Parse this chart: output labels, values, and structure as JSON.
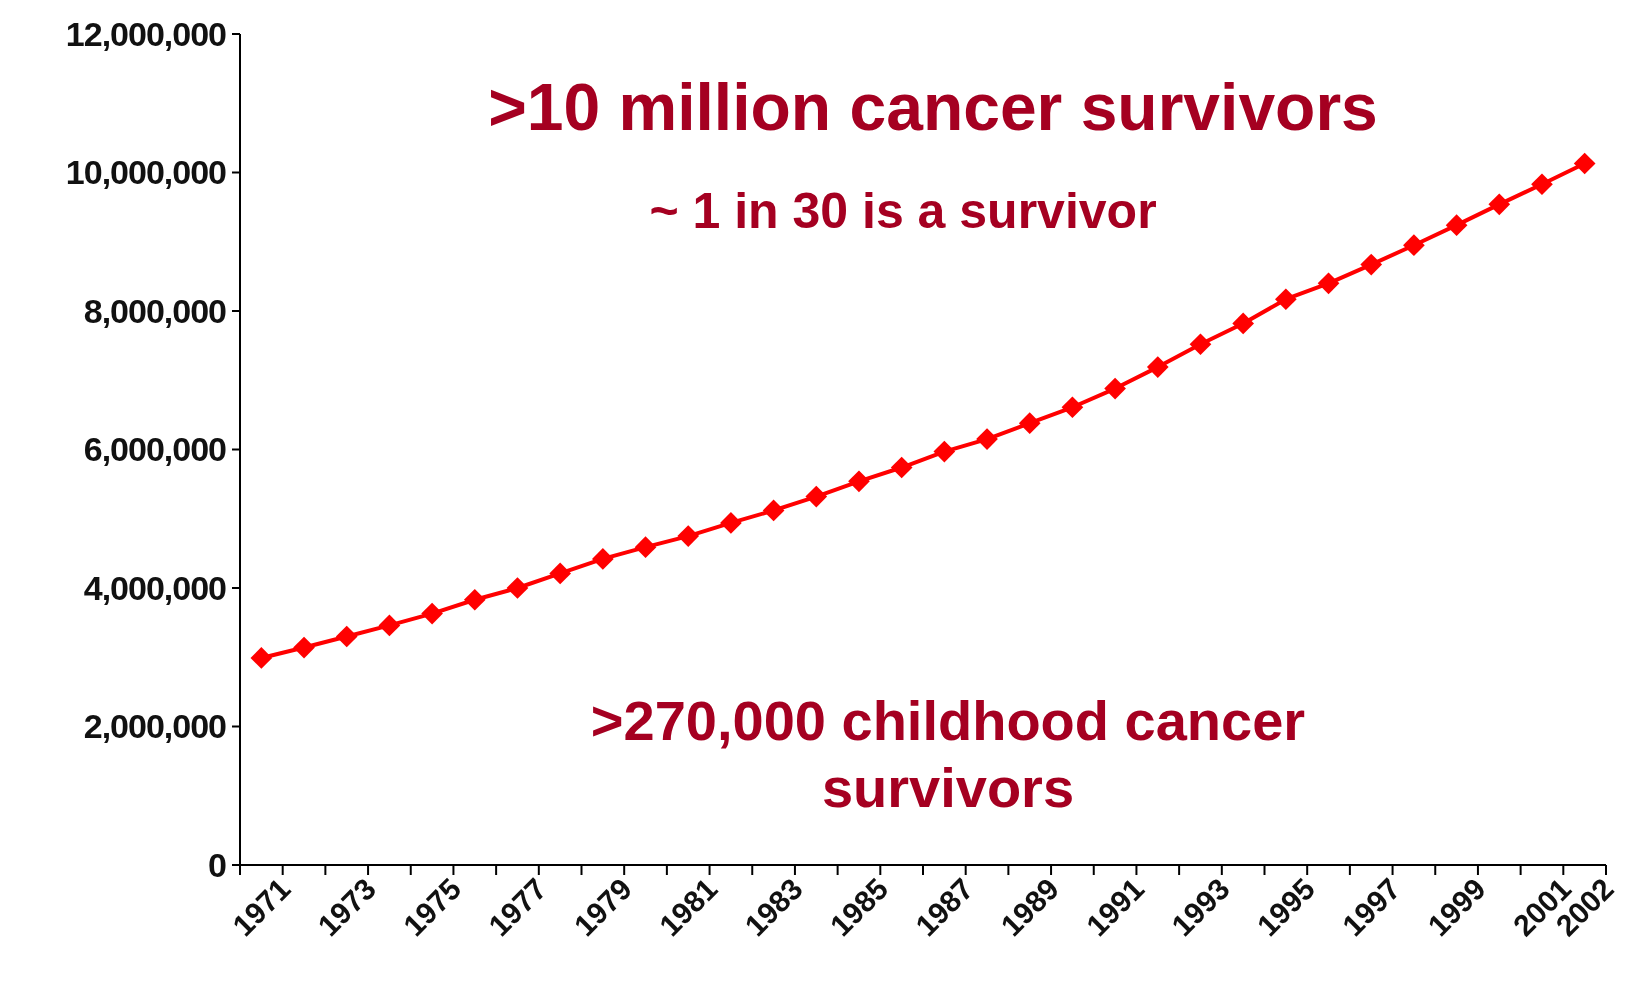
{
  "chart_data": {
    "type": "line",
    "categories": [
      "1971",
      null,
      "1973",
      null,
      "1975",
      null,
      "1977",
      null,
      "1979",
      null,
      "1981",
      null,
      "1983",
      null,
      "1985",
      null,
      "1987",
      null,
      "1989",
      null,
      "1991",
      null,
      "1993",
      null,
      "1995",
      null,
      "1997",
      null,
      "1999",
      null,
      "2001",
      "2002"
    ],
    "series": [
      {
        "color": "#ff0000",
        "values": [
          2990000,
          3140000,
          3300000,
          3460000,
          3630000,
          3830000,
          4000000,
          4210000,
          4420000,
          4590000,
          4750000,
          4940000,
          5120000,
          5320000,
          5540000,
          5740000,
          5970000,
          6150000,
          6380000,
          6610000,
          6880000,
          7190000,
          7520000,
          7820000,
          8170000,
          8400000,
          8670000,
          8950000,
          9240000,
          9540000,
          9830000,
          10130000
        ]
      }
    ],
    "ylim": [
      0,
      12000000
    ],
    "yticks": [
      {
        "value": 0,
        "label": "0"
      },
      {
        "value": 2000000,
        "label": "2,000,000"
      },
      {
        "value": 4000000,
        "label": "4,000,000"
      },
      {
        "value": 6000000,
        "label": "6,000,000"
      },
      {
        "value": 8000000,
        "label": "8,000,000"
      },
      {
        "value": 10000000,
        "label": "10,000,000"
      },
      {
        "value": 12000000,
        "label": "12,000,000"
      }
    ],
    "grid": false,
    "marker": "diamond",
    "line_style": "solid",
    "annotations": [
      ">10 million cancer survivors",
      "~ 1 in 30 is a survivor",
      ">270,000 childhood cancer survivors"
    ]
  }
}
